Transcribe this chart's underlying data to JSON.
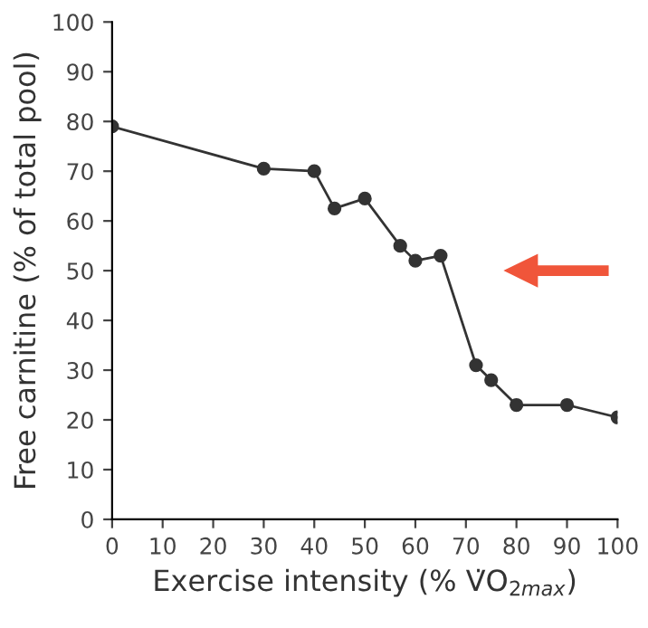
{
  "chart_data": {
    "type": "line",
    "xlabel": "Exercise intensity (% V̇O$_{2max}$)",
    "ylabel": "Free carnitine (% of total pool)",
    "series": [
      {
        "color": "#333333",
        "x": [
          0,
          30,
          40,
          44,
          50,
          57,
          60,
          65,
          72,
          75,
          80,
          90,
          100
        ],
        "values": [
          79,
          70.5,
          70,
          62.5,
          64.5,
          55,
          52,
          53,
          31,
          28,
          23,
          23,
          20.5
        ]
      }
    ],
    "marker": "circle",
    "xlim": [
      0,
      100
    ],
    "xticks": [
      0,
      10,
      20,
      30,
      40,
      50,
      60,
      70,
      80,
      90,
      100
    ],
    "ylim": [
      0,
      100
    ],
    "yticks": [
      0,
      10,
      20,
      30,
      40,
      50,
      60,
      70,
      80,
      90,
      100
    ],
    "grid": false,
    "legend": false
  }
}
